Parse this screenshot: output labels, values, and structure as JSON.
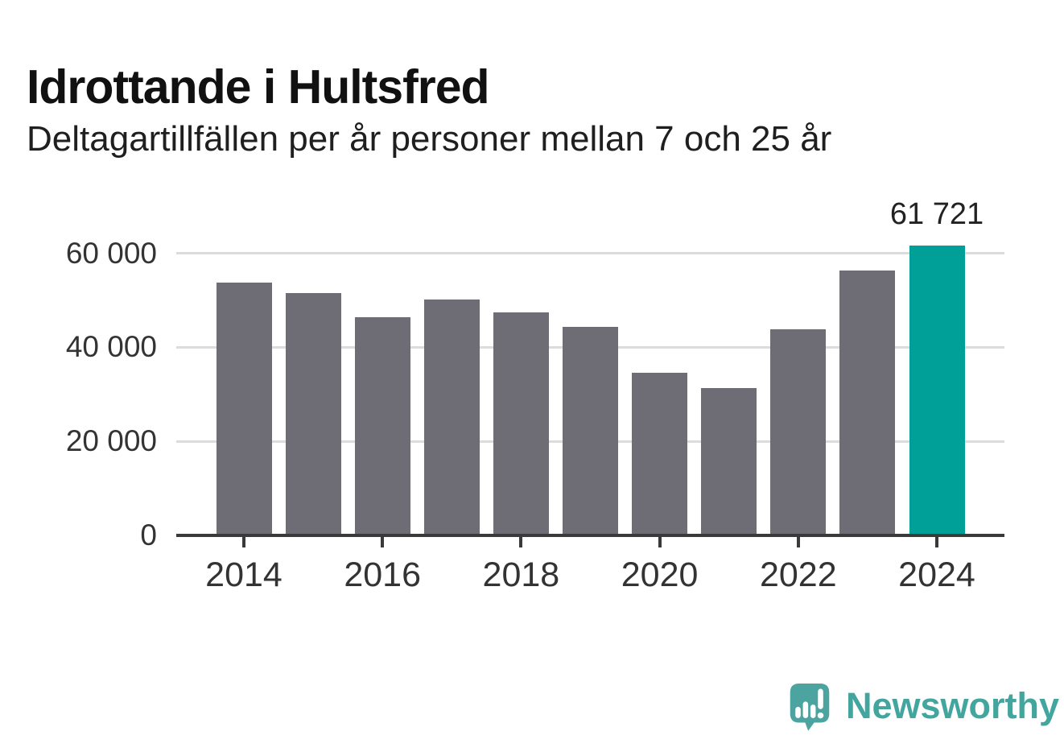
{
  "header": {
    "title": "Idrottande i Hultsfred",
    "subtitle": "Deltagartillfällen per år personer mellan 7 och 25 år"
  },
  "chart_data": {
    "type": "bar",
    "title": "Idrottande i Hultsfred",
    "subtitle": "Deltagartillfällen per år personer mellan 7 och 25 år",
    "categories": [
      "2014",
      "2015",
      "2016",
      "2017",
      "2018",
      "2019",
      "2020",
      "2021",
      "2022",
      "2023",
      "2024"
    ],
    "values": [
      53700,
      51600,
      46400,
      50100,
      47400,
      44400,
      34600,
      31400,
      43800,
      56400,
      61721
    ],
    "highlight_index": 10,
    "highlight_label": "61 721",
    "x_tick_labels": [
      "2014",
      "2016",
      "2018",
      "2020",
      "2022",
      "2024"
    ],
    "y_ticks": [
      {
        "value": 0,
        "label": "0"
      },
      {
        "value": 20000,
        "label": "20 000"
      },
      {
        "value": 40000,
        "label": "40 000"
      },
      {
        "value": 60000,
        "label": "60 000"
      }
    ],
    "ylim": [
      0,
      64000
    ],
    "xlabel": "",
    "ylabel": "",
    "grid": "horizontal",
    "legend": "none",
    "colors": {
      "bar": "#6E6D75",
      "highlight": "#00A099",
      "grid": "#dcdcdc",
      "axis": "#3a3a3a",
      "tick_text": "#333333"
    }
  },
  "footer": {
    "brand": "Newsworthy"
  }
}
